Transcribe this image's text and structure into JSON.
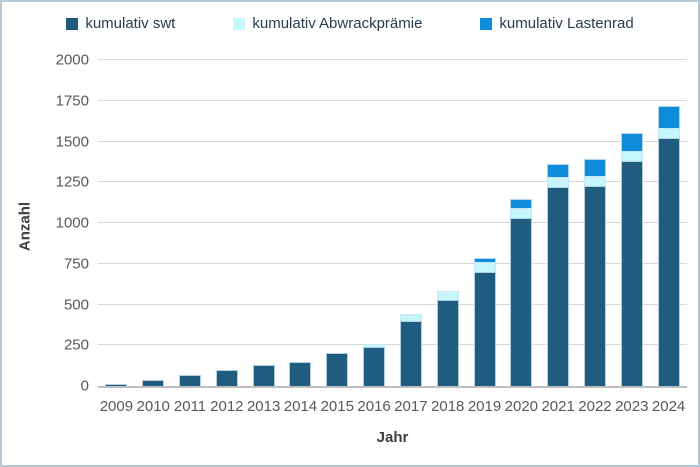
{
  "frame": {
    "background": "#ffffff",
    "border_color": "#b7c9d6"
  },
  "legend": {
    "position": "top",
    "items": [
      {
        "key": "swt",
        "label": "kumulativ swt",
        "color": "#1f5c80"
      },
      {
        "key": "abwrackpraemie",
        "label": "kumulativ Abwrackprämie",
        "color": "#c4f6fb"
      },
      {
        "key": "lastenrad",
        "label": "kumulativ Lastenrad",
        "color": "#0e8cd9"
      }
    ]
  },
  "axes": {
    "x_title": "Jahr",
    "y_title": "Anzahl",
    "tick_color": "#595959",
    "gridline_color": "#d9d9d9",
    "axis_line_color": "#bfbfbf"
  },
  "chart_data": {
    "type": "bar",
    "stacked": true,
    "title": "",
    "xlabel": "Jahr",
    "ylabel": "Anzahl",
    "ylim": [
      0,
      2000
    ],
    "ytick_step": 250,
    "yticks": [
      0,
      250,
      500,
      750,
      1000,
      1250,
      1500,
      1750,
      2000
    ],
    "grid": true,
    "legend_position": "top",
    "categories": [
      "2009",
      "2010",
      "2011",
      "2012",
      "2013",
      "2014",
      "2015",
      "2016",
      "2017",
      "2018",
      "2019",
      "2020",
      "2021",
      "2022",
      "2023",
      "2024"
    ],
    "series": [
      {
        "name": "kumulativ swt",
        "key": "swt",
        "color": "#1f5c80",
        "values": [
          15,
          35,
          65,
          100,
          130,
          150,
          200,
          240,
          400,
          530,
          700,
          1030,
          1220,
          1230,
          1380,
          1520
        ]
      },
      {
        "name": "kumulativ Abwrackprämie",
        "key": "abwrackpraemie",
        "color": "#c4f6fb",
        "values": [
          0,
          0,
          0,
          0,
          0,
          0,
          0,
          20,
          40,
          55,
          60,
          60,
          60,
          60,
          60,
          60
        ]
      },
      {
        "name": "kumulativ Lastenrad",
        "key": "lastenrad",
        "color": "#0e8cd9",
        "values": [
          0,
          0,
          0,
          0,
          0,
          0,
          0,
          0,
          0,
          0,
          25,
          60,
          80,
          100,
          110,
          140
        ]
      }
    ],
    "totals": [
      15,
      35,
      65,
      100,
      130,
      150,
      200,
      260,
      440,
      585,
      785,
      1150,
      1360,
      1390,
      1550,
      1720
    ]
  }
}
